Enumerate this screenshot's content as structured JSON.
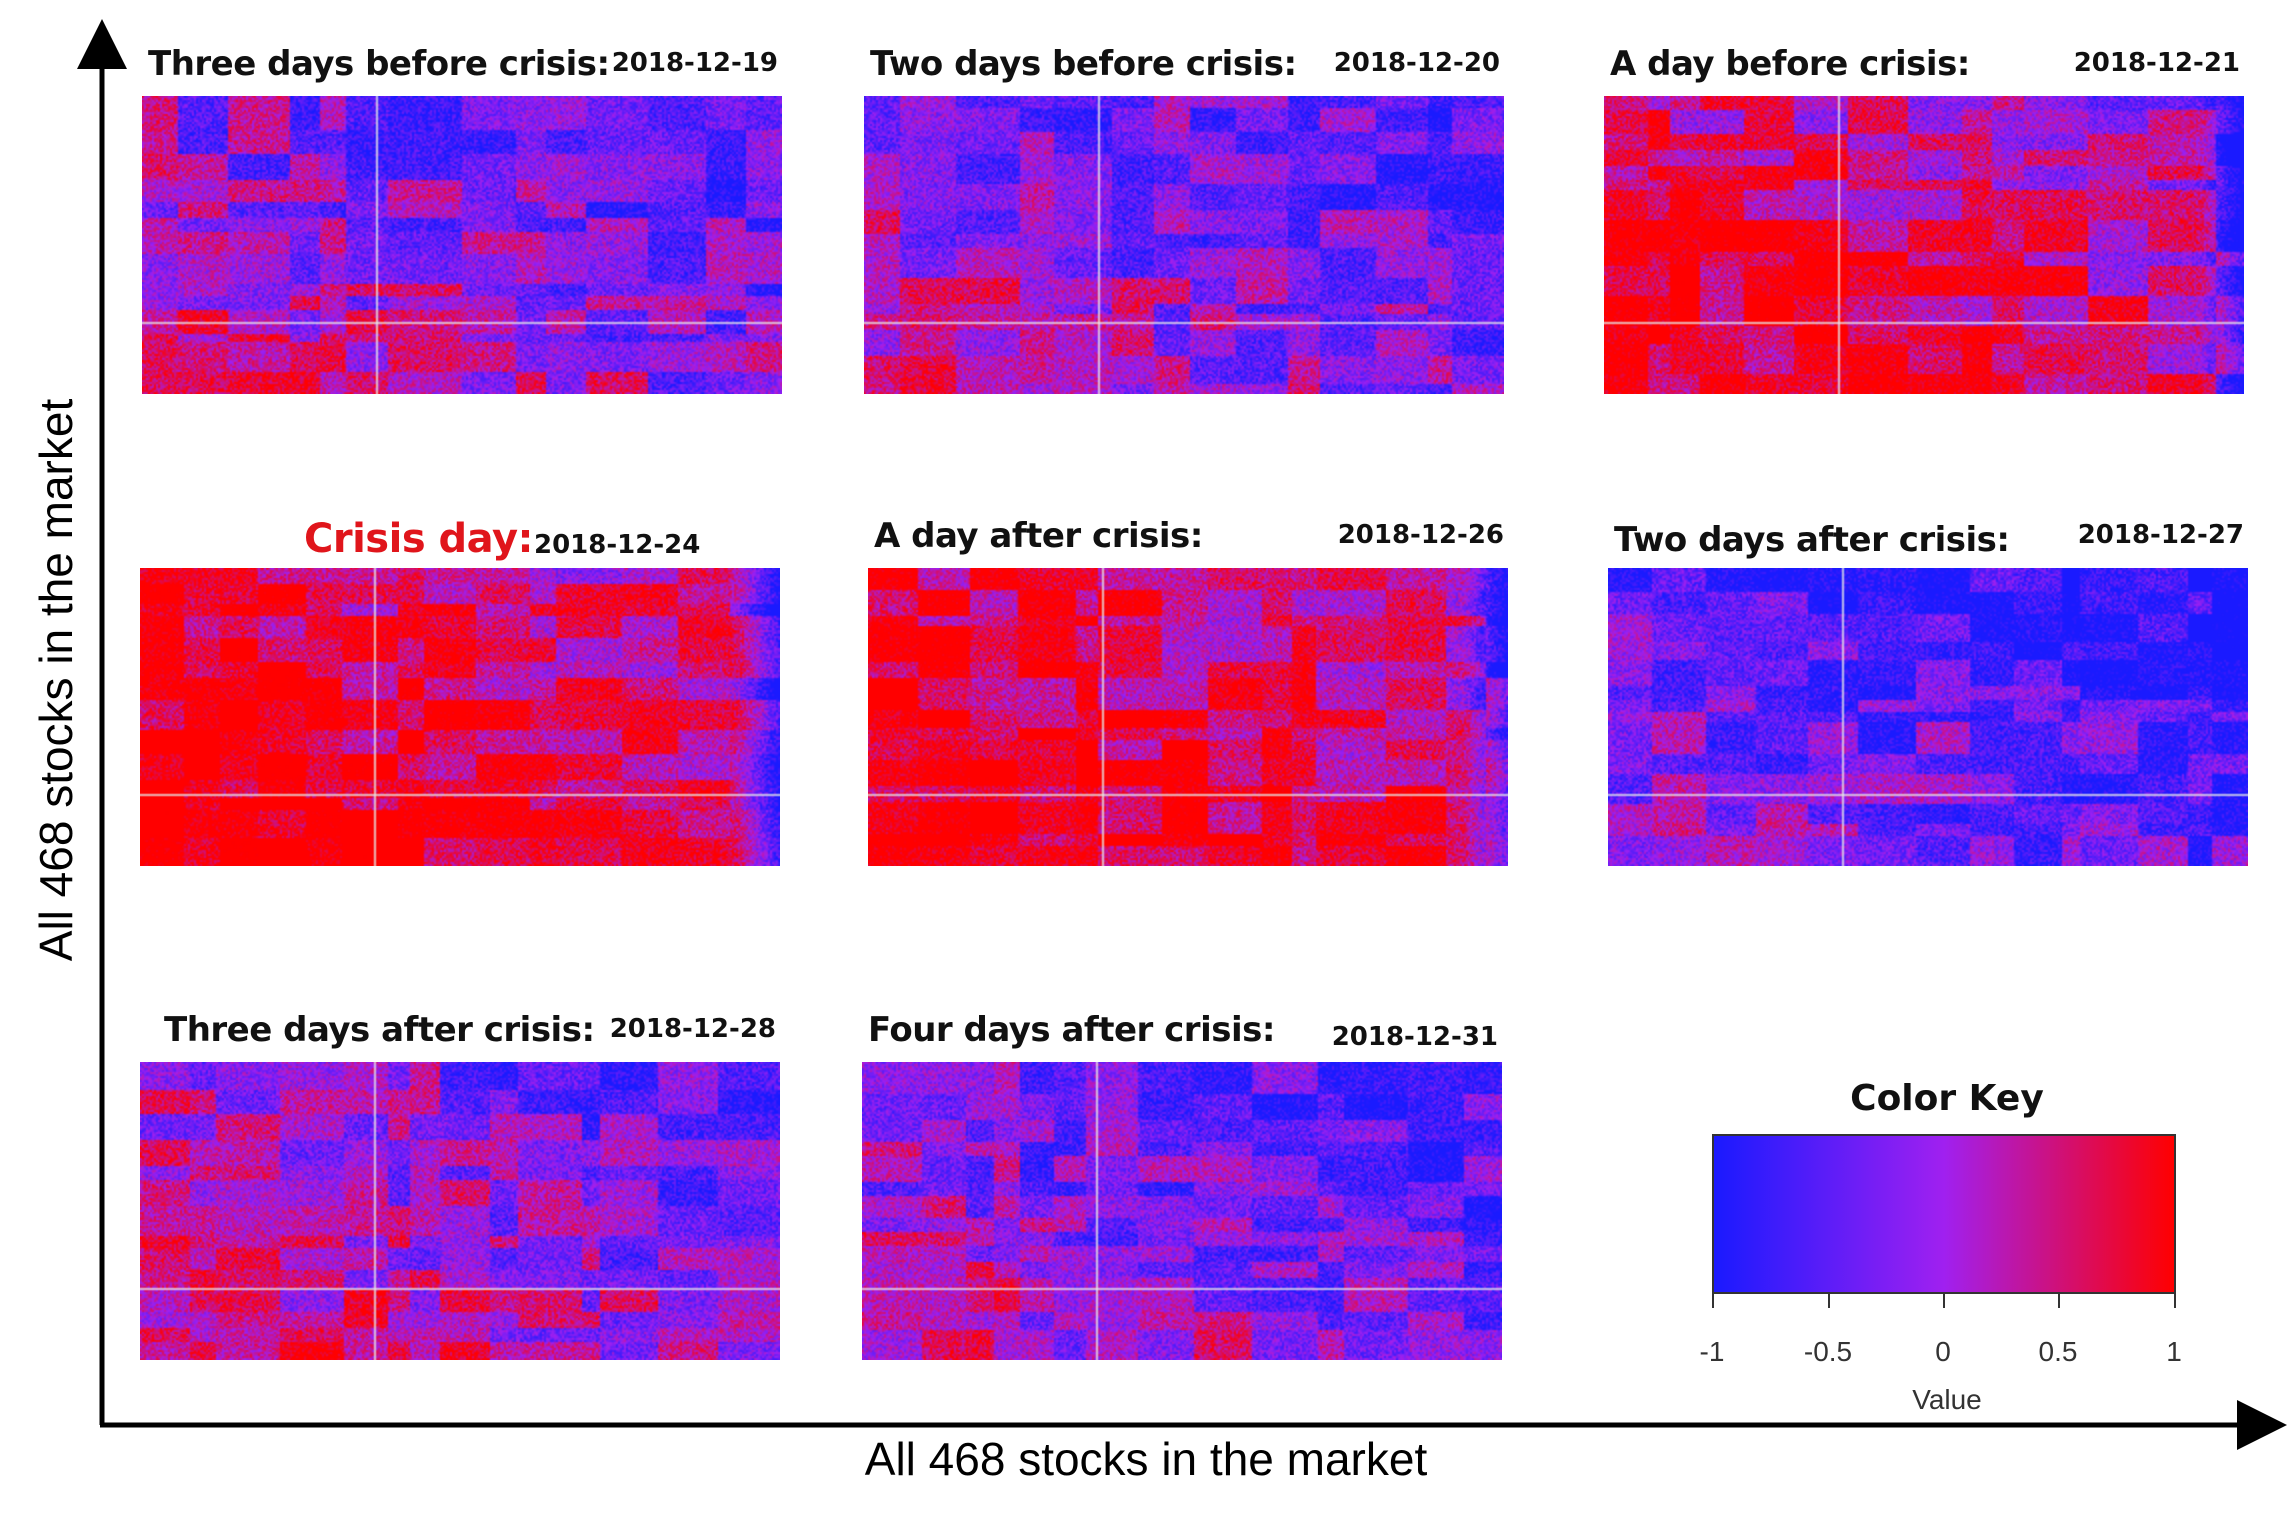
{
  "chart_data": {
    "type": "heatmap",
    "xlabel": "All 468 stocks in the market",
    "ylabel": "All 468 stocks in the market",
    "n_stocks": 468,
    "value_range": [
      -1,
      1
    ],
    "panels": [
      {
        "title": "Three days before crisis:",
        "date": "2018-12-19",
        "mean_correlation": -0.1,
        "crisis": false
      },
      {
        "title": "Two days before crisis:",
        "date": "2018-12-20",
        "mean_correlation": -0.15,
        "crisis": false
      },
      {
        "title": "A day before crisis:",
        "date": "2018-12-21",
        "mean_correlation": 0.55,
        "crisis": false
      },
      {
        "title": "Crisis day:",
        "date": "2018-12-24",
        "mean_correlation": 0.8,
        "crisis": true
      },
      {
        "title": "A day after crisis:",
        "date": "2018-12-26",
        "mean_correlation": 0.75,
        "crisis": false
      },
      {
        "title": "Two days after crisis:",
        "date": "2018-12-27",
        "mean_correlation": -0.55,
        "crisis": false
      },
      {
        "title": "Three days after crisis:",
        "date": "2018-12-28",
        "mean_correlation": 0.05,
        "crisis": false
      },
      {
        "title": "Four days after crisis:",
        "date": "2018-12-31",
        "mean_correlation": -0.2,
        "crisis": false
      }
    ],
    "color_key": {
      "title": "Color Key",
      "value_label": "Value",
      "ticks": [
        "-1",
        "-0.5",
        "0",
        "0.5",
        "1"
      ],
      "tick_values": [
        -1,
        -0.5,
        0,
        0.5,
        1
      ],
      "colors": [
        "#1a1aff",
        "#a020f0",
        "#ff0000"
      ]
    }
  }
}
